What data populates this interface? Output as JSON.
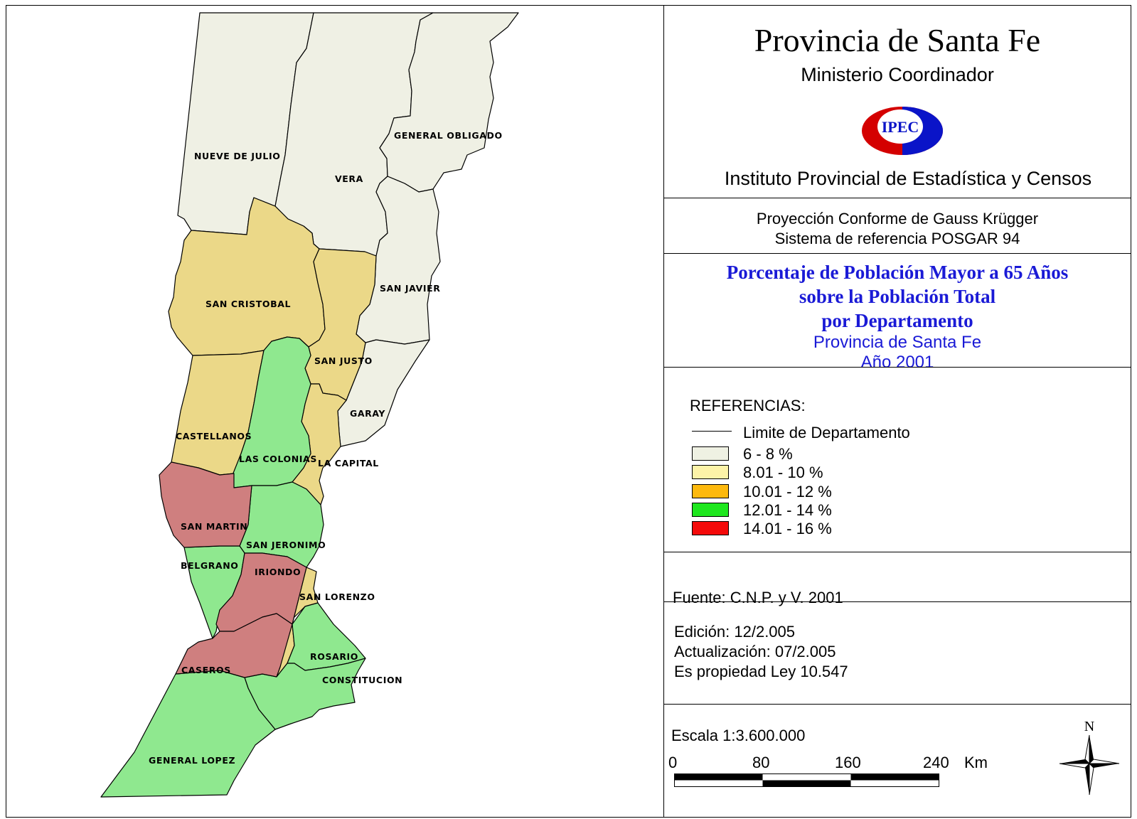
{
  "header": {
    "title": "Provincia de Santa Fe",
    "ministry": "Ministerio Coordinador",
    "logo_text": "IPEC",
    "institute": "Instituto Provincial de Estadística y Censos"
  },
  "projection": {
    "line1": "Proyección Conforme de Gauss Krügger",
    "line2": "Sistema de referencia POSGAR 94"
  },
  "theme": {
    "line1": "Porcentaje de Población Mayor a 65 Años",
    "line2": "sobre la Población Total",
    "line3": "por Departamento",
    "subtitle1": "Provincia de Santa Fe",
    "subtitle2": "Año 2001"
  },
  "legend": {
    "title": "REFERENCIAS:",
    "boundary_label": "Limite de Departamento",
    "classes": [
      {
        "label": "6 - 8 %",
        "color": "#eff1e3"
      },
      {
        "label": "8.01 - 10 %",
        "color": "#fdf3a8"
      },
      {
        "label": "10.01 - 12 %",
        "color": "#fdb90d"
      },
      {
        "label": "12.01 - 14 %",
        "color": "#1ee71e"
      },
      {
        "label": "14.01 - 16 %",
        "color": "#f40a0a"
      }
    ]
  },
  "source": "Fuente:  C.N.P. y V. 2001",
  "edition": {
    "edicion": "Edición:  12/2.005",
    "actualizacion": "Actualización:  07/2.005",
    "propiedad": "Es propiedad Ley 10.547"
  },
  "scale": {
    "label": "Escala 1:3.600.000",
    "ticks": [
      "0",
      "80",
      "160",
      "240"
    ],
    "unit": "Km"
  },
  "north_label": "N",
  "map": {
    "fill_colors": {
      "low": "#eff0e4",
      "mid": "#ebd888",
      "high": "#8fe88f",
      "top": "#cf7f7f"
    },
    "departments": [
      {
        "name": "NUEVE DE JULIO",
        "class": "6 - 8 %"
      },
      {
        "name": "VERA",
        "class": "6 - 8 %"
      },
      {
        "name": "GENERAL OBLIGADO",
        "class": "6 - 8 %"
      },
      {
        "name": "SAN JAVIER",
        "class": "6 - 8 %"
      },
      {
        "name": "GARAY",
        "class": "6 - 8 %"
      },
      {
        "name": "SAN CRISTOBAL",
        "class": "8.01 - 10 %"
      },
      {
        "name": "SAN JUSTO",
        "class": "8.01 - 10 %"
      },
      {
        "name": "CASTELLANOS",
        "class": "8.01 - 10 %"
      },
      {
        "name": "LA CAPITAL",
        "class": "8.01 - 10 %"
      },
      {
        "name": "SAN LORENZO",
        "class": "8.01 - 10 %"
      },
      {
        "name": "LAS COLONIAS",
        "class": "12.01 - 14 %"
      },
      {
        "name": "SAN JERONIMO",
        "class": "12.01 - 14 %"
      },
      {
        "name": "BELGRANO",
        "class": "12.01 - 14 %"
      },
      {
        "name": "ROSARIO",
        "class": "12.01 - 14 %"
      },
      {
        "name": "CONSTITUCION",
        "class": "12.01 - 14 %"
      },
      {
        "name": "GENERAL LOPEZ",
        "class": "12.01 - 14 %"
      },
      {
        "name": "SAN MARTIN",
        "class": "14.01 - 16 %"
      },
      {
        "name": "IRIONDO",
        "class": "14.01 - 16 %"
      },
      {
        "name": "CASEROS",
        "class": "14.01 - 16 %"
      }
    ]
  }
}
